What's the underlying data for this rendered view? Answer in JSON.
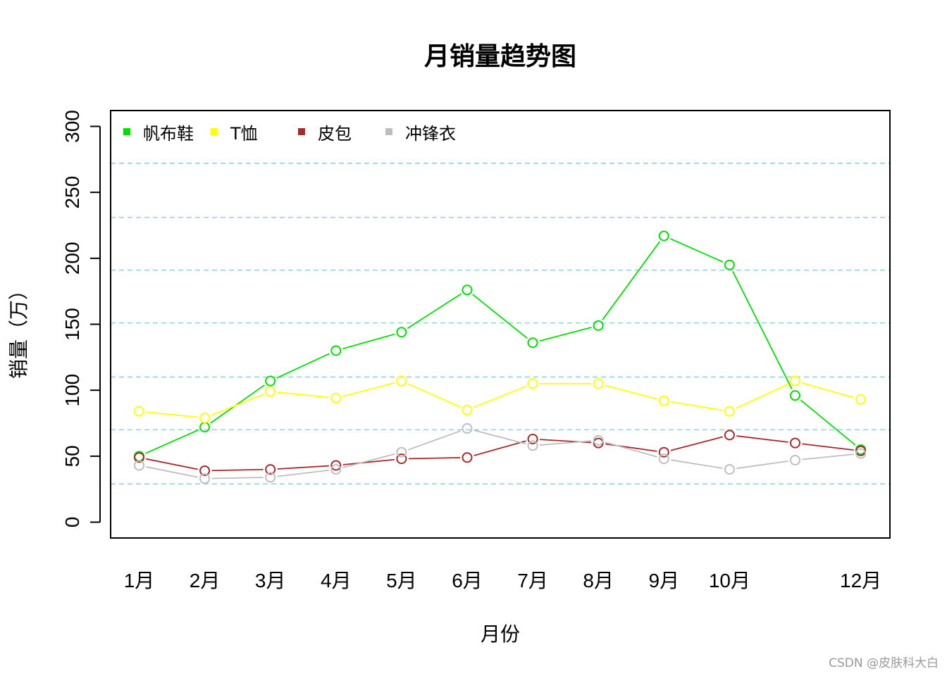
{
  "chart_data": {
    "type": "line",
    "title": "月销量趋势图",
    "xlabel": "月份",
    "ylabel": "销量（万）",
    "categories": [
      "1月",
      "2月",
      "3月",
      "4月",
      "5月",
      "6月",
      "7月",
      "8月",
      "9月",
      "10月",
      "",
      "12月"
    ],
    "ylim": [
      -12,
      312
    ],
    "yticks": [
      0,
      50,
      100,
      150,
      200,
      250,
      300
    ],
    "gridlines": [
      29,
      70,
      110,
      151,
      191,
      231,
      272
    ],
    "grid_color": "#8fd3e0",
    "legend_position": "top-left",
    "series": [
      {
        "name": "帆布鞋",
        "color": "#00e000",
        "values": [
          50,
          72,
          107,
          130,
          144,
          176,
          136,
          149,
          217,
          195,
          96,
          55
        ]
      },
      {
        "name": "T恤",
        "color": "#ffff00",
        "values": [
          84,
          79,
          99,
          94,
          107,
          85,
          105,
          105,
          92,
          84,
          107,
          93
        ]
      },
      {
        "name": "皮包",
        "color": "#a52a2a",
        "values": [
          49,
          39,
          40,
          43,
          48,
          49,
          63,
          60,
          53,
          66,
          60,
          54
        ]
      },
      {
        "name": "冲锋衣",
        "color": "#bebebe",
        "values": [
          43,
          33,
          34,
          40,
          53,
          71,
          58,
          62,
          48,
          40,
          47,
          52
        ]
      }
    ]
  },
  "watermark": "CSDN @皮肤科大白"
}
